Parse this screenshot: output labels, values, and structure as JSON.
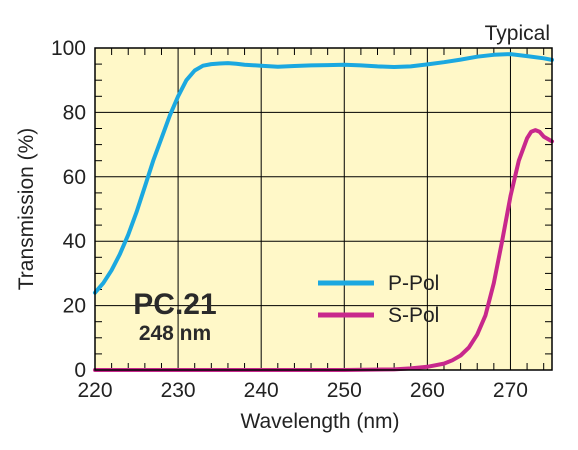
{
  "chart_data": {
    "type": "line",
    "note": "Typical",
    "xlabel": "Wavelength (nm)",
    "ylabel": "Transmission (%)",
    "xlim": [
      220,
      275
    ],
    "ylim": [
      0,
      100
    ],
    "x_ticks": [
      220,
      230,
      240,
      250,
      260,
      270
    ],
    "y_ticks": [
      0,
      20,
      40,
      60,
      80,
      100
    ],
    "grid": true,
    "legend_position": "lower-right",
    "annotation": {
      "title": "PC.21",
      "subtitle": "248 nm"
    },
    "colors": {
      "plot_background": "#FFF8C8",
      "grid": "#000000"
    },
    "series": [
      {
        "name": "P-Pol",
        "color": "#1BA8E0",
        "points": [
          [
            220,
            24
          ],
          [
            221,
            27
          ],
          [
            222,
            31
          ],
          [
            223,
            36
          ],
          [
            224,
            42
          ],
          [
            225,
            49
          ],
          [
            226,
            57
          ],
          [
            227,
            65
          ],
          [
            228,
            72
          ],
          [
            229,
            79
          ],
          [
            230,
            85
          ],
          [
            231,
            90
          ],
          [
            232,
            93
          ],
          [
            233,
            94.5
          ],
          [
            234,
            95
          ],
          [
            235,
            95.2
          ],
          [
            236,
            95.3
          ],
          [
            237,
            95.1
          ],
          [
            238,
            94.8
          ],
          [
            240,
            94.5
          ],
          [
            242,
            94.2
          ],
          [
            244,
            94.4
          ],
          [
            246,
            94.6
          ],
          [
            248,
            94.7
          ],
          [
            250,
            94.8
          ],
          [
            252,
            94.6
          ],
          [
            254,
            94.3
          ],
          [
            256,
            94.1
          ],
          [
            258,
            94.3
          ],
          [
            260,
            94.9
          ],
          [
            262,
            95.6
          ],
          [
            264,
            96.4
          ],
          [
            266,
            97.3
          ],
          [
            268,
            97.9
          ],
          [
            270,
            98.1
          ],
          [
            272,
            97.5
          ],
          [
            274,
            96.8
          ],
          [
            275,
            96.3
          ]
        ]
      },
      {
        "name": "S-Pol",
        "color": "#C8288C",
        "points": [
          [
            220,
            0
          ],
          [
            230,
            0
          ],
          [
            240,
            0
          ],
          [
            250,
            0
          ],
          [
            256,
            0.2
          ],
          [
            258,
            0.5
          ],
          [
            260,
            1
          ],
          [
            262,
            2
          ],
          [
            263,
            3
          ],
          [
            264,
            4.5
          ],
          [
            265,
            7
          ],
          [
            266,
            11
          ],
          [
            267,
            17
          ],
          [
            268,
            27
          ],
          [
            269,
            40
          ],
          [
            270,
            54
          ],
          [
            271,
            65
          ],
          [
            272,
            72
          ],
          [
            272.5,
            74
          ],
          [
            273,
            74.5
          ],
          [
            273.5,
            74
          ],
          [
            274,
            72.5
          ],
          [
            275,
            71
          ]
        ]
      }
    ]
  }
}
